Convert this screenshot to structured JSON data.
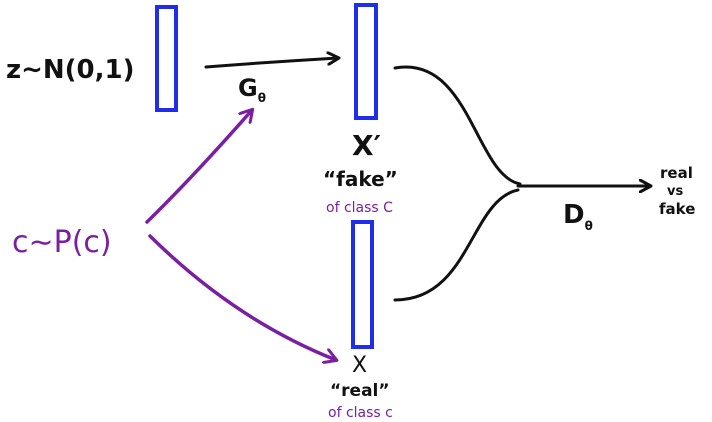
{
  "labels": {
    "z_dist": "z∼N(0,1)",
    "generator_letter": "G",
    "generator_sub": "θ",
    "x_prime": "X′",
    "fake_quote": "“fake”",
    "fake_class": "of class C",
    "c_dist": "c∼P(c)",
    "x_real": "X",
    "real_quote": "“real”",
    "real_class": "of class c",
    "disc_letter": "D",
    "disc_sub": "θ",
    "output_line1": "real",
    "output_line2": "vs",
    "output_line3": "fake"
  },
  "colors": {
    "ink": "#111111",
    "purple": "#7b1fa2",
    "blue": "#1f2ee8"
  }
}
